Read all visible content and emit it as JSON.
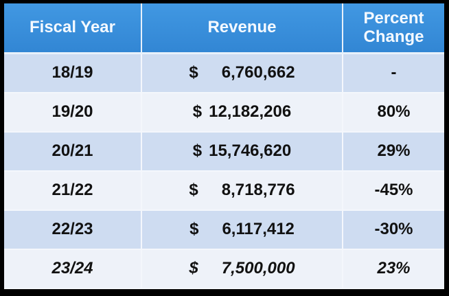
{
  "table": {
    "headers": [
      "Fiscal Year",
      "Revenue",
      "Percent Change"
    ],
    "currency_symbol": "$",
    "rows": [
      {
        "year": "18/19",
        "revenue": "6,760,662",
        "change": "-",
        "style": "a",
        "italic": false
      },
      {
        "year": "19/20",
        "revenue": "12,182,206",
        "change": "80%",
        "style": "b",
        "italic": false
      },
      {
        "year": "20/21",
        "revenue": "15,746,620",
        "change": "29%",
        "style": "a",
        "italic": false
      },
      {
        "year": "21/22",
        "revenue": "8,718,776",
        "change": "-45%",
        "style": "b",
        "italic": false
      },
      {
        "year": "22/23",
        "revenue": "6,117,412",
        "change": "-30%",
        "style": "a",
        "italic": false
      },
      {
        "year": "23/24",
        "revenue": "7,500,000",
        "change": "23%",
        "style": "b",
        "italic": true
      }
    ]
  },
  "colors": {
    "header_bg": "#3a8fdb",
    "row_alt": "#cedcf1",
    "row_light": "#eef2f9",
    "frame": "#000000"
  }
}
